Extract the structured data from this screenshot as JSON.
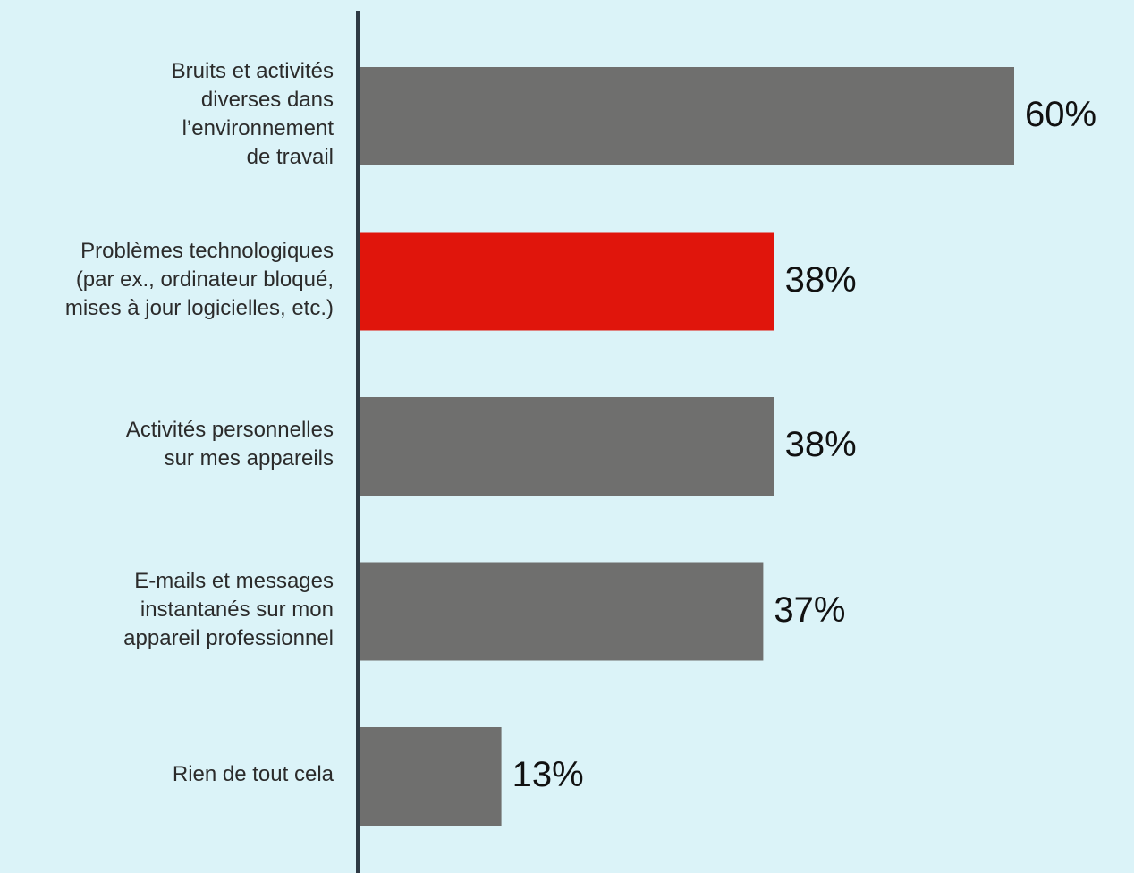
{
  "chart_data": {
    "type": "bar",
    "orientation": "horizontal",
    "categories": [
      "Bruits et activités diverses dans l’environnement de travail",
      "Problèmes technologiques (par ex., ordinateur bloqué, mises à jour logicielles, etc.)",
      "Activités personnelles sur mes appareils",
      "E-mails et messages instantanés sur mon appareil professionnel",
      "Rien de tout cela"
    ],
    "category_lines": [
      [
        "Bruits et activités",
        "diverses dans",
        "l’environnement",
        "de travail"
      ],
      [
        "Problèmes technologiques",
        "(par ex., ordinateur bloqué,",
        "mises à jour logicielles, etc.)"
      ],
      [
        "Activités personnelles",
        "sur mes appareils"
      ],
      [
        "E-mails et messages",
        "instantanés sur mon",
        "appareil professionnel"
      ],
      [
        "Rien de tout cela"
      ]
    ],
    "values": [
      60,
      38,
      38,
      37,
      13
    ],
    "value_labels": [
      "60%",
      "38%",
      "38%",
      "37%",
      "13%"
    ],
    "highlight_index": 1,
    "xlim": [
      0,
      100
    ],
    "title": "",
    "xlabel": "",
    "ylabel": "",
    "grid": false,
    "legend": "none"
  },
  "colors": {
    "background": "#dbf3f8",
    "bar": "#6f6f6e",
    "highlight": "#e0150c",
    "axis": "#2e3a44",
    "label_text": "#2b2b2b",
    "value_text": "#111111"
  }
}
